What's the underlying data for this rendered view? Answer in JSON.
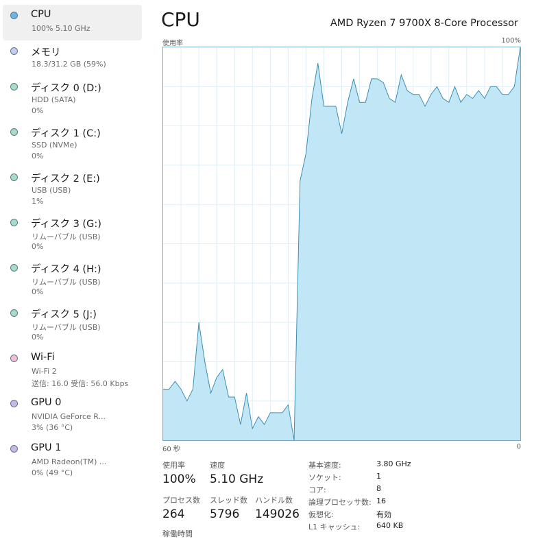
{
  "sidebar": {
    "items": [
      {
        "title": "CPU",
        "line1": "100%  5.10 GHz",
        "line2": "",
        "dot_color": "#6fb2e3",
        "active": true
      },
      {
        "title": "メモリ",
        "line1": "18.3/31.2 GB (59%)",
        "line2": "",
        "dot_color": "#c8ccf0",
        "active": false
      },
      {
        "title": "ディスク 0 (D:)",
        "line1": "HDD (SATA)",
        "line2": "0%",
        "dot_color": "#a8dbc8",
        "active": false
      },
      {
        "title": "ディスク 1 (C:)",
        "line1": "SSD (NVMe)",
        "line2": "0%",
        "dot_color": "#a8dbc8",
        "active": false
      },
      {
        "title": "ディスク 2 (E:)",
        "line1": "USB (USB)",
        "line2": "1%",
        "dot_color": "#a8dbc8",
        "active": false
      },
      {
        "title": "ディスク 3 (G:)",
        "line1": "リムーバブル (USB)",
        "line2": "0%",
        "dot_color": "#a8dbc8",
        "active": false
      },
      {
        "title": "ディスク 4 (H:)",
        "line1": "リムーバブル (USB)",
        "line2": "0%",
        "dot_color": "#a8dbc8",
        "active": false
      },
      {
        "title": "ディスク 5 (J:)",
        "line1": "リムーバブル (USB)",
        "line2": "0%",
        "dot_color": "#a8dbc8",
        "active": false
      },
      {
        "title": "Wi-Fi",
        "line1": "Wi-Fi 2",
        "line2": "送信: 16.0  受信: 56.0 Kbps",
        "dot_color": "#f5bcd8",
        "active": false
      },
      {
        "title": "GPU 0",
        "line1": "NVIDIA GeForce R...",
        "line2": "3%  (36 °C)",
        "dot_color": "#cbb7e6",
        "active": false
      },
      {
        "title": "GPU 1",
        "line1": "AMD Radeon(TM) ...",
        "line2": "0%  (49 °C)",
        "dot_color": "#cbb7e6",
        "active": false
      }
    ]
  },
  "main": {
    "title": "CPU",
    "processor": "AMD Ryzen 7 9700X 8-Core Processor",
    "usage_label": "使用率",
    "max_label": "100%",
    "time_left_label": "60 秒",
    "time_right_label": "0"
  },
  "chart_data": {
    "type": "area",
    "title": "",
    "xlabel": "",
    "ylabel": "使用率",
    "xlim": [
      60,
      0
    ],
    "ylim": [
      0,
      100
    ],
    "grid": true,
    "line_color": "#3b8fb0",
    "fill_color": "#c1e7f6",
    "x": [
      60,
      59,
      58,
      57,
      56,
      55,
      54,
      53,
      52,
      51,
      50,
      49,
      48,
      47,
      46,
      45,
      44,
      43,
      42,
      41,
      40,
      39,
      38,
      37,
      36,
      35,
      34,
      33,
      32,
      31,
      30,
      29,
      28,
      27,
      26,
      25,
      24,
      23,
      22,
      21,
      20,
      19,
      18,
      17,
      16,
      15,
      14,
      13,
      12,
      11,
      10,
      9,
      8,
      7,
      6,
      5,
      4,
      3,
      2,
      1,
      0
    ],
    "y": [
      13,
      13,
      15,
      13,
      10,
      13,
      30,
      20,
      12,
      16,
      18,
      11,
      11,
      4,
      12,
      3,
      6,
      4,
      7,
      7,
      7,
      9,
      0,
      66,
      73,
      87,
      96,
      85,
      85,
      85,
      78,
      86,
      92,
      86,
      86,
      92,
      92,
      91,
      87,
      86,
      93,
      89,
      88,
      88,
      85,
      88,
      90,
      87,
      86,
      90,
      86,
      88,
      87,
      89,
      87,
      90,
      90,
      88,
      88,
      90,
      100
    ],
    "y_extra": []
  },
  "stats": {
    "row1": [
      {
        "label": "使用率",
        "value": "100%"
      },
      {
        "label": "速度",
        "value": "5.10 GHz"
      }
    ],
    "row2": [
      {
        "label": "プロセス数",
        "value": "264"
      },
      {
        "label": "スレッド数",
        "value": "5796"
      },
      {
        "label": "ハンドル数",
        "value": "149026"
      }
    ],
    "partial_label": "稼働時間"
  },
  "details": [
    {
      "key": "基本速度:",
      "value": "3.80 GHz"
    },
    {
      "key": "ソケット:",
      "value": "1"
    },
    {
      "key": "コア:",
      "value": "8"
    },
    {
      "key": "論理プロセッサ数:",
      "value": "16"
    },
    {
      "key": "仮想化:",
      "value": "有効"
    },
    {
      "key": "L1 キャッシュ:",
      "value": "640 KB"
    }
  ]
}
